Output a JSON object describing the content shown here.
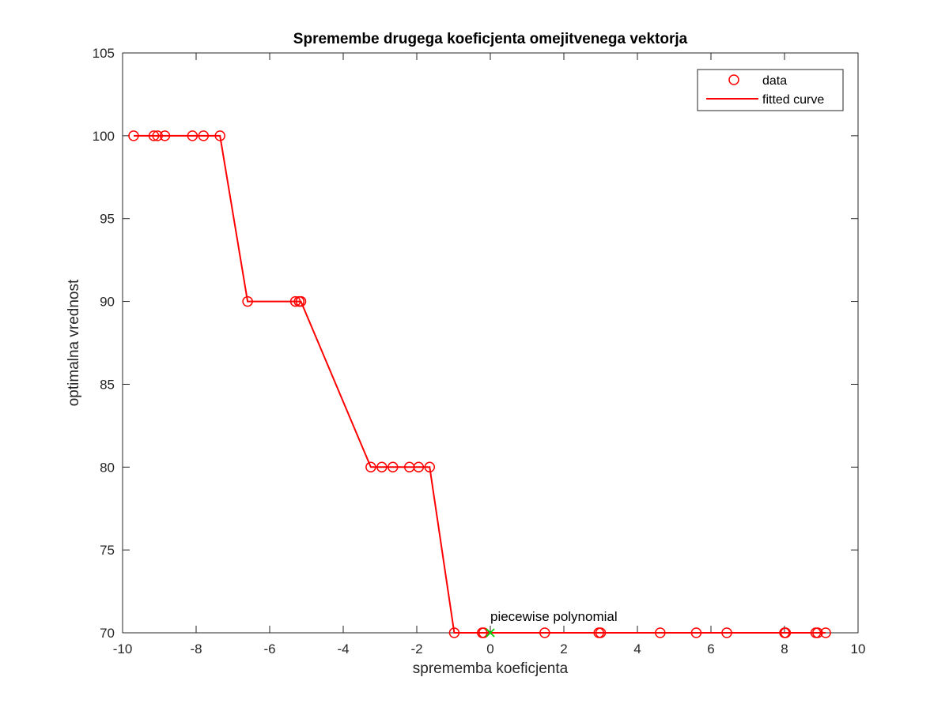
{
  "chart_data": {
    "type": "scatter",
    "title": "Spremembe drugega koeficjenta omejitvenega vektorja",
    "xlabel": "sprememba koeficjenta",
    "ylabel": "optimalna vrednost",
    "xlim": [
      -10,
      10
    ],
    "ylim": [
      70,
      105
    ],
    "xticks": [
      -10,
      -8,
      -6,
      -4,
      -2,
      0,
      2,
      4,
      6,
      8,
      10
    ],
    "yticks": [
      70,
      75,
      80,
      85,
      90,
      95,
      100,
      105
    ],
    "xtick_labels": [
      "-10",
      "-8",
      "-6",
      "-4",
      "-2",
      "0",
      "2",
      "4",
      "6",
      "8",
      "10"
    ],
    "ytick_labels": [
      "70",
      "75",
      "80",
      "85",
      "90",
      "95",
      "100",
      "105"
    ],
    "grid": false,
    "legend_position": "top-right",
    "series": [
      {
        "name": "data",
        "style": "markers",
        "marker": "circle",
        "color": "#ff0000",
        "x": [
          -9.7,
          -9.15,
          -9.05,
          -8.85,
          -8.1,
          -7.8,
          -7.35,
          -6.6,
          -5.3,
          -5.2,
          -5.15,
          -3.25,
          -2.95,
          -2.65,
          -2.2,
          -1.95,
          -1.65,
          -0.98,
          -0.22,
          -0.18,
          1.48,
          2.95,
          3.0,
          4.62,
          5.6,
          6.43,
          8.0,
          8.03,
          8.85,
          8.9,
          9.12
        ],
        "y": [
          100,
          100,
          100,
          100,
          100,
          100,
          100,
          90,
          90,
          90,
          90,
          80,
          80,
          80,
          80,
          80,
          80,
          70,
          70,
          70,
          70,
          70,
          70,
          70,
          70,
          70,
          70,
          70,
          70,
          70,
          70
        ]
      },
      {
        "name": "fitted curve",
        "style": "line",
        "color": "#ff0000",
        "x": [
          -9.7,
          -9.15,
          -9.05,
          -8.85,
          -8.1,
          -7.8,
          -7.35,
          -6.6,
          -5.3,
          -5.2,
          -5.15,
          -3.25,
          -2.95,
          -2.65,
          -2.2,
          -1.95,
          -1.65,
          -0.98,
          -0.22,
          -0.18,
          1.48,
          2.95,
          3.0,
          4.62,
          5.6,
          6.43,
          8.0,
          8.03,
          8.85,
          8.9,
          9.12
        ],
        "y": [
          100,
          100,
          100,
          100,
          100,
          100,
          100,
          90,
          90,
          90,
          90,
          80,
          80,
          80,
          80,
          80,
          80,
          70,
          70,
          70,
          70,
          70,
          70,
          70,
          70,
          70,
          70,
          70,
          70,
          70,
          70
        ]
      }
    ],
    "highlight_point": {
      "x": 0,
      "y": 70,
      "marker": "x",
      "color": "#00cc00"
    },
    "annotation": {
      "text": "piecewise polynomial",
      "x": 0,
      "y": 70
    }
  },
  "colors": {
    "axis": "#262626",
    "series": "#ff0000",
    "highlight": "#00cc00",
    "background": "#ffffff"
  }
}
